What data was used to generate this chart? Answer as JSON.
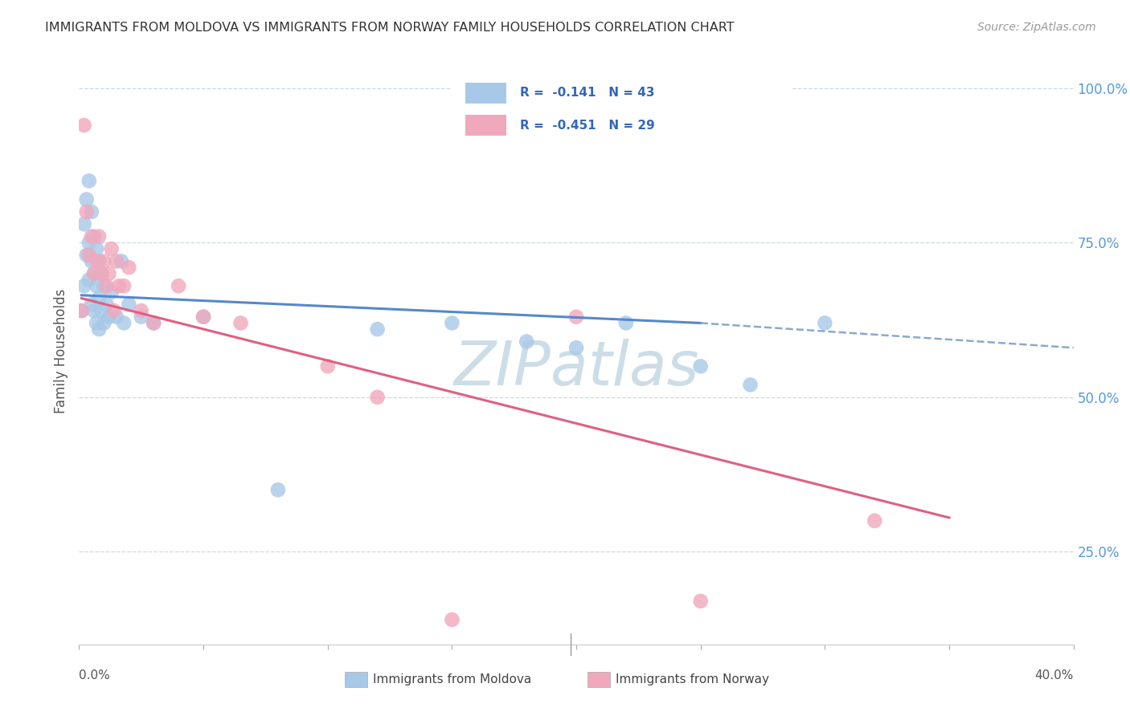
{
  "title": "IMMIGRANTS FROM MOLDOVA VS IMMIGRANTS FROM NORWAY FAMILY HOUSEHOLDS CORRELATION CHART",
  "source": "Source: ZipAtlas.com",
  "ylabel": "Family Households",
  "right_yticks": [
    "100.0%",
    "75.0%",
    "50.0%",
    "25.0%"
  ],
  "right_ytick_vals": [
    1.0,
    0.75,
    0.5,
    0.25
  ],
  "xlim": [
    0.0,
    0.4
  ],
  "ylim": [
    0.1,
    1.05
  ],
  "legend_label1": "R =  -0.141   N = 43",
  "legend_label2": "R =  -0.451   N = 29",
  "color_moldova": "#a8c8e8",
  "color_norway": "#f0a8bc",
  "trendline_color_moldova_solid": "#5588cc",
  "trendline_color_moldova_dashed": "#88aad0",
  "trendline_color_norway": "#e06080",
  "background_color": "#ffffff",
  "grid_color": "#ccd8e4",
  "watermark_text": "ZIPatlas",
  "watermark_color": "#ccdde8",
  "moldova_x": [
    0.001,
    0.002,
    0.002,
    0.003,
    0.003,
    0.004,
    0.004,
    0.004,
    0.005,
    0.005,
    0.005,
    0.006,
    0.006,
    0.006,
    0.007,
    0.007,
    0.007,
    0.008,
    0.008,
    0.008,
    0.009,
    0.009,
    0.01,
    0.01,
    0.011,
    0.012,
    0.013,
    0.015,
    0.017,
    0.018,
    0.02,
    0.025,
    0.03,
    0.05,
    0.08,
    0.12,
    0.15,
    0.18,
    0.2,
    0.22,
    0.25,
    0.27,
    0.3
  ],
  "moldova_y": [
    0.64,
    0.78,
    0.68,
    0.82,
    0.73,
    0.85,
    0.75,
    0.69,
    0.8,
    0.72,
    0.65,
    0.76,
    0.7,
    0.64,
    0.74,
    0.68,
    0.62,
    0.72,
    0.66,
    0.61,
    0.7,
    0.64,
    0.68,
    0.62,
    0.65,
    0.63,
    0.67,
    0.63,
    0.72,
    0.62,
    0.65,
    0.63,
    0.62,
    0.63,
    0.35,
    0.61,
    0.62,
    0.59,
    0.58,
    0.62,
    0.55,
    0.52,
    0.62
  ],
  "norway_x": [
    0.001,
    0.002,
    0.003,
    0.004,
    0.005,
    0.006,
    0.007,
    0.008,
    0.009,
    0.01,
    0.011,
    0.012,
    0.013,
    0.014,
    0.015,
    0.016,
    0.018,
    0.02,
    0.025,
    0.03,
    0.04,
    0.05,
    0.065,
    0.1,
    0.12,
    0.15,
    0.2,
    0.25,
    0.32
  ],
  "norway_y": [
    0.64,
    0.94,
    0.8,
    0.73,
    0.76,
    0.7,
    0.72,
    0.76,
    0.7,
    0.72,
    0.68,
    0.7,
    0.74,
    0.64,
    0.72,
    0.68,
    0.68,
    0.71,
    0.64,
    0.62,
    0.68,
    0.63,
    0.62,
    0.55,
    0.5,
    0.14,
    0.63,
    0.17,
    0.3
  ],
  "trendline_mol_x0": 0.001,
  "trendline_mol_x1_solid": 0.25,
  "trendline_mol_x1_dashed": 0.4,
  "trendline_mol_y0": 0.665,
  "trendline_mol_y1_solid": 0.62,
  "trendline_mol_y1_dashed": 0.58,
  "trendline_nor_x0": 0.001,
  "trendline_nor_x1": 0.35,
  "trendline_nor_y0": 0.66,
  "trendline_nor_y1": 0.305,
  "xtick_positions": [
    0.0,
    0.05,
    0.1,
    0.15,
    0.2,
    0.25,
    0.3,
    0.35,
    0.4
  ],
  "bottom_label_moldova": "Immigrants from Moldova",
  "bottom_label_norway": "Immigrants from Norway"
}
